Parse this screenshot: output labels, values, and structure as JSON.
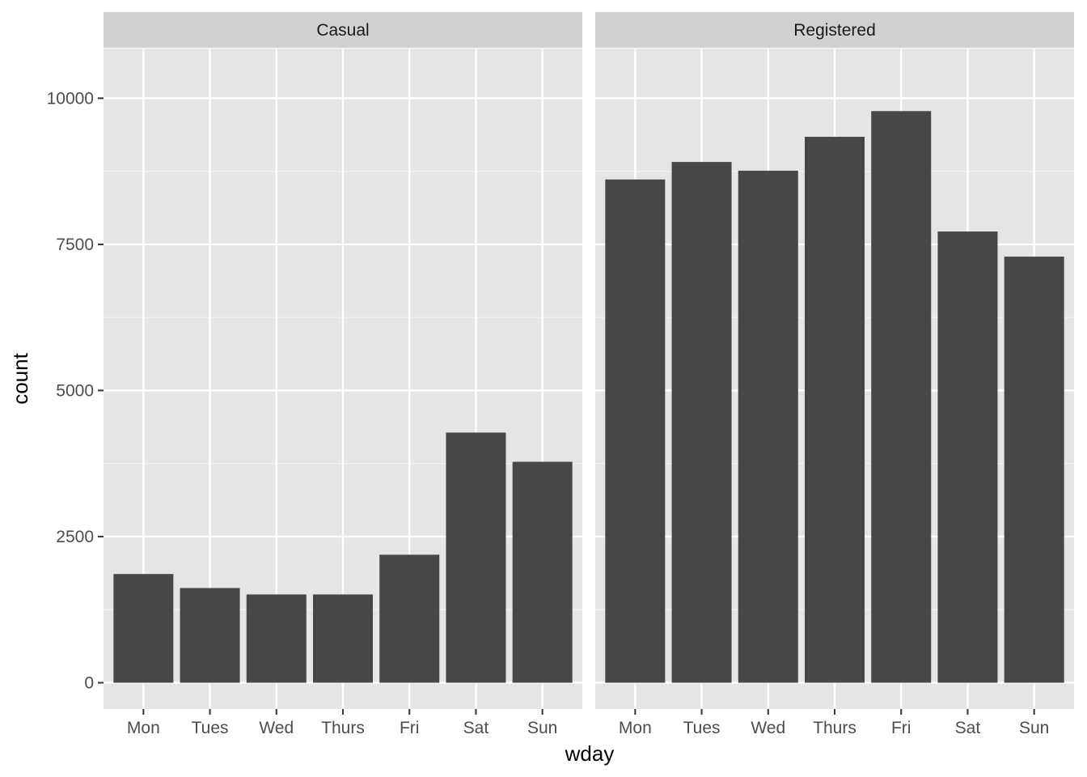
{
  "chart_data": {
    "type": "bar",
    "xlabel": "wday",
    "ylabel": "count",
    "categories": [
      "Mon",
      "Tues",
      "Wed",
      "Thurs",
      "Fri",
      "Sat",
      "Sun"
    ],
    "y_ticks": [
      0,
      2500,
      5000,
      7500,
      10000
    ],
    "y_tick_labels": [
      "0",
      "2500",
      "5000",
      "7500",
      "10000"
    ],
    "ylim": [
      -450,
      10850
    ],
    "grid": true,
    "bar_color": "#474747",
    "panel_background": "#e5e5e5",
    "strip_background": "#d1d1d1",
    "panels": [
      {
        "name": "Casual",
        "values": [
          1860,
          1620,
          1510,
          1510,
          2190,
          4280,
          3780
        ]
      },
      {
        "name": "Registered",
        "values": [
          8610,
          8910,
          8760,
          9340,
          9780,
          7720,
          7290
        ]
      }
    ]
  }
}
